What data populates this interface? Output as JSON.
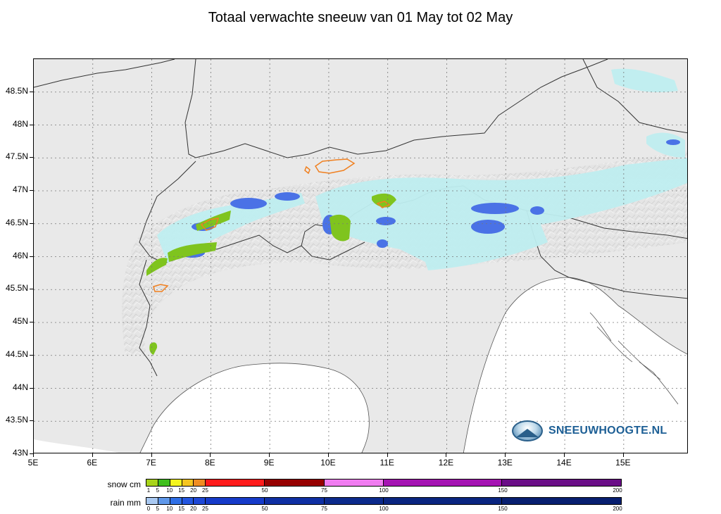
{
  "title": "Totaal verwachte sneeuw van 01 May tot 02 May",
  "map": {
    "lat_labels": [
      "48.5N",
      "48N",
      "47.5N",
      "47N",
      "46.5N",
      "46N",
      "45.5N",
      "45N",
      "44.5N",
      "44N",
      "43.5N",
      "43N"
    ],
    "lat_values": [
      48.5,
      48,
      47.5,
      47,
      46.5,
      46,
      45.5,
      45,
      44.5,
      44,
      43.5,
      43
    ],
    "lon_labels": [
      "5E",
      "6E",
      "7E",
      "8E",
      "9E",
      "10E",
      "11E",
      "12E",
      "13E",
      "14E",
      "15E"
    ],
    "lon_values": [
      5,
      6,
      7,
      8,
      9,
      10,
      11,
      12,
      13,
      14,
      15
    ],
    "lon_range": [
      5,
      16.1
    ],
    "lat_range": [
      43,
      49.0
    ],
    "colors": {
      "land": "#e9e9e9",
      "sea": "#ffffff",
      "rain_light": "#bfeef0",
      "rain_blue": "#3f6ee0",
      "snow_green": "#7fc41e",
      "snow_orange": "#f08020"
    }
  },
  "logo": {
    "text": "SNEEUWHOOGTE.NL",
    "icon": "mountain-logo-icon"
  },
  "legend": {
    "snow": {
      "label": "snow cm",
      "ticks": [
        "1",
        "5",
        "10",
        "15",
        "20",
        "25",
        "50",
        "75",
        "100",
        "150",
        "200"
      ],
      "segments": [
        {
          "color": "#a8d41a",
          "units": 1
        },
        {
          "color": "#3fbf1d",
          "units": 1
        },
        {
          "color": "#f5f51d",
          "units": 1
        },
        {
          "color": "#f6c51f",
          "units": 1
        },
        {
          "color": "#f08d22",
          "units": 1
        },
        {
          "color": "#ff1b1b",
          "units": 5
        },
        {
          "color": "#960000",
          "units": 5
        },
        {
          "color": "#f07cf0",
          "units": 5
        },
        {
          "color": "#a514b3",
          "units": 10
        },
        {
          "color": "#6a0d87",
          "units": 10
        }
      ]
    },
    "rain": {
      "label": "rain mm",
      "ticks": [
        "0",
        "5",
        "10",
        "15",
        "20",
        "25",
        "50",
        "75",
        "100",
        "150",
        "200"
      ],
      "segments": [
        {
          "color": "#a9c9f2",
          "units": 1
        },
        {
          "color": "#5f98ea",
          "units": 1
        },
        {
          "color": "#2f6fe6",
          "units": 1
        },
        {
          "color": "#2356e0",
          "units": 1
        },
        {
          "color": "#1e48d6",
          "units": 1
        },
        {
          "color": "#163bc9",
          "units": 5
        },
        {
          "color": "#0f2fa3",
          "units": 5
        },
        {
          "color": "#0c2a8c",
          "units": 5
        },
        {
          "color": "#0a2580",
          "units": 10
        },
        {
          "color": "#081f70",
          "units": 10
        }
      ]
    }
  }
}
